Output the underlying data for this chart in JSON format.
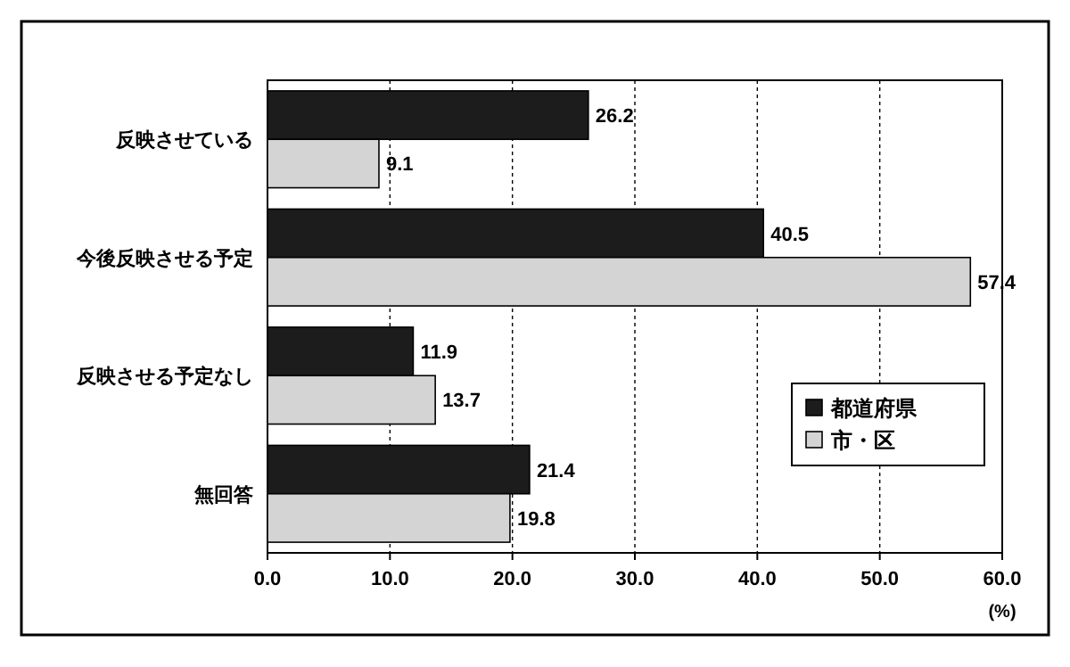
{
  "chart_data": {
    "type": "bar",
    "orientation": "horizontal",
    "categories": [
      "反映させている",
      "今後反映させる予定",
      "反映させる予定なし",
      "無回答"
    ],
    "series": [
      {
        "name": "都道府県",
        "color": "#1c1c1c",
        "values": [
          26.2,
          40.5,
          11.9,
          21.4
        ]
      },
      {
        "name": "市・区",
        "color": "#d4d4d4",
        "values": [
          9.1,
          57.4,
          13.7,
          19.8
        ]
      }
    ],
    "xlim": [
      0,
      60
    ],
    "xticks": [
      {
        "value": 0,
        "label": "0.0"
      },
      {
        "value": 10,
        "label": "10.0"
      },
      {
        "value": 20,
        "label": "20.0"
      },
      {
        "value": 30,
        "label": "30.0"
      },
      {
        "value": 40,
        "label": "40.0"
      },
      {
        "value": 50,
        "label": "50.0"
      },
      {
        "value": 60,
        "label": "60.0"
      }
    ],
    "xlabel": "(%)",
    "grid": "x",
    "legend": "right",
    "data_labels": true
  }
}
